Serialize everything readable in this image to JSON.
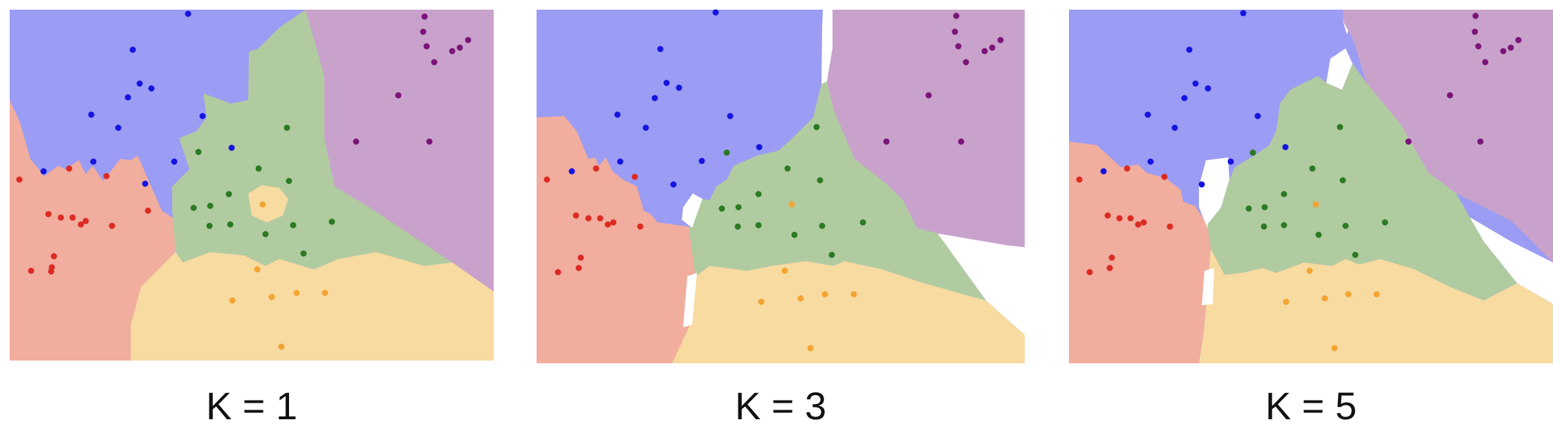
{
  "colors": {
    "blue": "#9b9cf4",
    "purple": "#c9a2cb",
    "green": "#b1cba0",
    "red": "#f1ad9e",
    "yellow": "#f7dba0",
    "dot_blue": "#1515e0",
    "dot_purple": "#7b1478",
    "dot_green": "#2c7a24",
    "dot_red": "#dc2b22",
    "dot_yellow": "#f3a431"
  },
  "panels": [
    {
      "label": "K = 1"
    },
    {
      "label": "K = 3"
    },
    {
      "label": "K = 5"
    }
  ]
}
